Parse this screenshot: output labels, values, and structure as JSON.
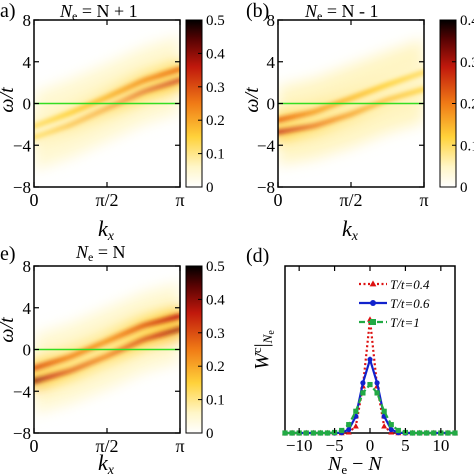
{
  "figure": {
    "panels": [
      {
        "id": "a",
        "label": "a)",
        "title": "Ne = N + 1",
        "title_main": "N",
        "title_sub": "e",
        "title_rest": " = N + 1",
        "ylabel": "ω/t",
        "xlabel": "kx",
        "colorbar_ticks": [
          "0.5",
          "0.4",
          "0.3",
          "0.2",
          "0.1",
          "0"
        ]
      },
      {
        "id": "b",
        "label": "(b)",
        "title": "Ne = N - 1",
        "title_main": "N",
        "title_sub": "e",
        "title_rest": " = N - 1",
        "ylabel": "ω/t",
        "xlabel": "kx",
        "colorbar_ticks": [
          "0.4",
          "0.3",
          "0.2",
          "0.1",
          "0"
        ]
      },
      {
        "id": "c",
        "label": "e)",
        "title": "Ne = N",
        "title_main": "N",
        "title_sub": "e",
        "title_rest": " = N",
        "ylabel": "ω/t",
        "xlabel": "kx",
        "colorbar_ticks": [
          "0.5",
          "0.4",
          "0.3",
          "0.2",
          "0.1",
          "0"
        ]
      },
      {
        "id": "d",
        "label": "(d)",
        "ylabel": "W c|Ne",
        "xlabel": "Ne − N"
      }
    ]
  },
  "chart_data": [
    {
      "type": "heatmap",
      "panel": "a",
      "title": "Ne = N + 1",
      "xlabel": "kx",
      "ylabel": "ω/t",
      "x_ticks": [
        "0",
        "π/2",
        "π"
      ],
      "y_ticks": [
        "8",
        "4",
        "0",
        "−4",
        "−8"
      ],
      "xlim": [
        0,
        3.1416
      ],
      "ylim": [
        -8,
        8
      ],
      "colorbar": {
        "min": 0,
        "max": 0.5,
        "ticks": [
          0,
          0.1,
          0.2,
          0.3,
          0.4,
          0.5
        ],
        "colormap": "white-yellow-orange-red-black"
      },
      "reference_line": {
        "y": 0,
        "color": "#33dd22"
      },
      "bands": [
        {
          "k": [
            0,
            0.785,
            1.571,
            2.356,
            3.1416
          ],
          "omega": [
            -3.2,
            -2.0,
            -0.4,
            1.2,
            2.3
          ],
          "weight": [
            0.14,
            0.18,
            0.22,
            0.3,
            0.36
          ]
        },
        {
          "k": [
            0,
            0.785,
            1.571,
            2.356,
            3.1416
          ],
          "omega": [
            -2.2,
            -0.9,
            0.6,
            2.2,
            3.3
          ],
          "weight": [
            0.12,
            0.15,
            0.18,
            0.22,
            0.26
          ]
        }
      ]
    },
    {
      "type": "heatmap",
      "panel": "b",
      "title": "Ne = N - 1",
      "xlabel": "kx",
      "ylabel": "ω/t",
      "x_ticks": [
        "0",
        "π/2",
        "π"
      ],
      "y_ticks": [
        "8",
        "4",
        "0",
        "−4",
        "−8"
      ],
      "xlim": [
        0,
        3.1416
      ],
      "ylim": [
        -8,
        8
      ],
      "colorbar": {
        "min": 0,
        "max": 0.4,
        "ticks": [
          0,
          0.1,
          0.2,
          0.3,
          0.4
        ],
        "colormap": "white-yellow-orange-red-black"
      },
      "reference_line": {
        "y": 0,
        "color": "#33dd22"
      },
      "bands": [
        {
          "k": [
            0,
            0.785,
            1.571,
            2.356,
            3.1416
          ],
          "omega": [
            -2.7,
            -2.1,
            -1.0,
            0.4,
            1.4
          ],
          "weight": [
            0.3,
            0.22,
            0.17,
            0.14,
            0.12
          ]
        },
        {
          "k": [
            0,
            0.785,
            1.571,
            2.356,
            3.1416
          ],
          "omega": [
            -1.6,
            -0.8,
            0.5,
            1.8,
            3.0
          ],
          "weight": [
            0.22,
            0.17,
            0.14,
            0.12,
            0.1
          ]
        }
      ]
    },
    {
      "type": "heatmap",
      "panel": "c",
      "title": "Ne = N",
      "xlabel": "kx",
      "ylabel": "ω/t",
      "x_ticks": [
        "0",
        "π/2",
        "π"
      ],
      "y_ticks": [
        "8",
        "4",
        "0",
        "−4",
        "−8"
      ],
      "xlim": [
        0,
        3.1416
      ],
      "ylim": [
        -8,
        8
      ],
      "colorbar": {
        "min": 0,
        "max": 0.5,
        "ticks": [
          0,
          0.1,
          0.2,
          0.3,
          0.4,
          0.5
        ],
        "colormap": "white-yellow-orange-red-black"
      },
      "reference_line": {
        "y": 0,
        "color": "#33dd22"
      },
      "bands": [
        {
          "k": [
            0,
            0.785,
            1.571,
            2.356,
            3.1416
          ],
          "omega": [
            -3.0,
            -2.0,
            -0.6,
            1.0,
            2.0
          ],
          "weight": [
            0.42,
            0.3,
            0.25,
            0.32,
            0.4
          ]
        },
        {
          "k": [
            0,
            0.785,
            1.571,
            2.356,
            3.1416
          ],
          "omega": [
            -1.8,
            -0.7,
            0.8,
            2.3,
            3.2
          ],
          "weight": [
            0.3,
            0.24,
            0.22,
            0.28,
            0.36
          ]
        }
      ]
    },
    {
      "type": "line",
      "panel": "d",
      "xlabel": "Ne − N",
      "ylabel": "W c|Ne",
      "xlim": [
        -12,
        12
      ],
      "ylim": [
        0,
        1
      ],
      "x_ticks": [
        -10,
        -5,
        0,
        5,
        10
      ],
      "legend_position": "top-right",
      "series": [
        {
          "name": "T/t=0.4",
          "color": "#dd1111",
          "style": "dotted",
          "marker": "triangle",
          "x": [
            -12,
            -11,
            -10,
            -9,
            -8,
            -7,
            -6,
            -5,
            -4,
            -3,
            -2,
            -1,
            0,
            1,
            2,
            3,
            4,
            5,
            6,
            7,
            8,
            9,
            10,
            11,
            12
          ],
          "y": [
            0,
            0,
            0,
            0,
            0,
            0,
            0,
            0,
            0,
            0.004,
            0.04,
            0.28,
            0.68,
            0.28,
            0.04,
            0.004,
            0,
            0,
            0,
            0,
            0,
            0,
            0,
            0,
            0
          ]
        },
        {
          "name": "T/t=0.6",
          "color": "#1122cc",
          "style": "solid",
          "marker": "circle",
          "x": [
            -12,
            -11,
            -10,
            -9,
            -8,
            -7,
            -6,
            -5,
            -4,
            -3,
            -2,
            -1,
            0,
            1,
            2,
            3,
            4,
            5,
            6,
            7,
            8,
            9,
            10,
            11,
            12
          ],
          "y": [
            0,
            0,
            0,
            0,
            0,
            0,
            0,
            0,
            0.002,
            0.02,
            0.1,
            0.3,
            0.44,
            0.3,
            0.1,
            0.02,
            0.002,
            0,
            0,
            0,
            0,
            0,
            0,
            0,
            0
          ]
        },
        {
          "name": "T/t=1",
          "color": "#22aa44",
          "style": "dashed",
          "marker": "square",
          "x": [
            -12,
            -11,
            -10,
            -9,
            -8,
            -7,
            -6,
            -5,
            -4,
            -3,
            -2,
            -1,
            0,
            1,
            2,
            3,
            4,
            5,
            6,
            7,
            8,
            9,
            10,
            11,
            12
          ],
          "y": [
            0,
            0,
            0,
            0,
            0,
            0,
            0,
            0.003,
            0.015,
            0.05,
            0.13,
            0.24,
            0.29,
            0.24,
            0.13,
            0.05,
            0.015,
            0.003,
            0,
            0,
            0,
            0,
            0,
            0,
            0
          ]
        }
      ]
    }
  ]
}
